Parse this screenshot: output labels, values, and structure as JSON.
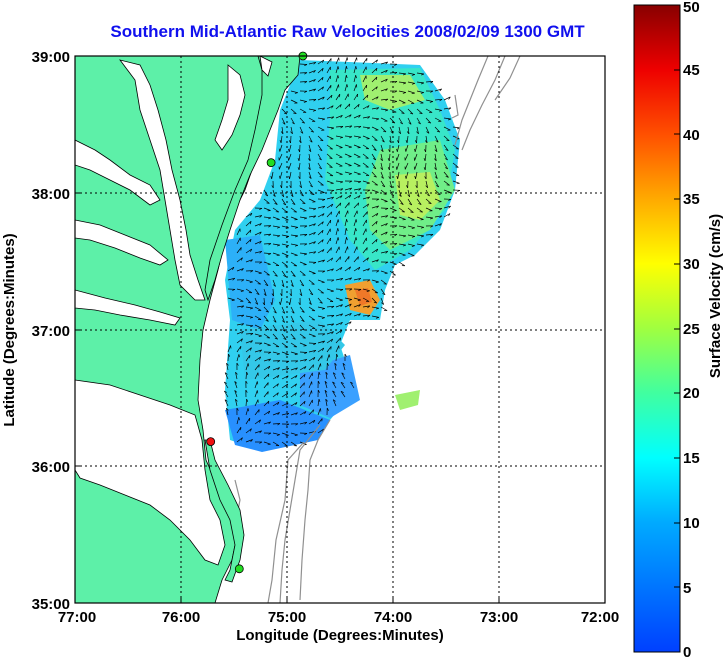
{
  "title": "Southern Mid-Atlantic Raw Velocities 2008/02/09 1300 GMT",
  "map": {
    "xlabel": "Longitude (Degrees:Minutes)",
    "ylabel": "Latitude (Degrees:Minutes)",
    "lon_ticks": [
      "77:00",
      "76:00",
      "75:00",
      "74:00",
      "73:00",
      "72:00"
    ],
    "lat_ticks": [
      "39:00",
      "38:00",
      "37:00",
      "36:00",
      "35:00"
    ],
    "lon_range": [
      -77,
      -72
    ],
    "lat_range": [
      35,
      39
    ],
    "colors": {
      "land": "#5df0a8",
      "water": "#ffffff",
      "coast": "#000000",
      "bathymetry": "#909090",
      "grid": "#000000",
      "vector": "#000000"
    }
  },
  "colorbar": {
    "label": "Surface Velocity (cm/s)",
    "ticks": [
      "0",
      "5",
      "10",
      "15",
      "20",
      "25",
      "30",
      "35",
      "40",
      "45",
      "50"
    ],
    "min": 0,
    "max": 50,
    "colormap": "jet"
  },
  "stations": [
    {
      "lon": -74.85,
      "lat": 39.0,
      "color": "#22dd22"
    },
    {
      "lon": -75.15,
      "lat": 38.22,
      "color": "#22dd22"
    },
    {
      "lon": -75.72,
      "lat": 36.18,
      "color": "#ee1111"
    },
    {
      "lon": -75.45,
      "lat": 35.25,
      "color": "#22dd22"
    }
  ]
}
